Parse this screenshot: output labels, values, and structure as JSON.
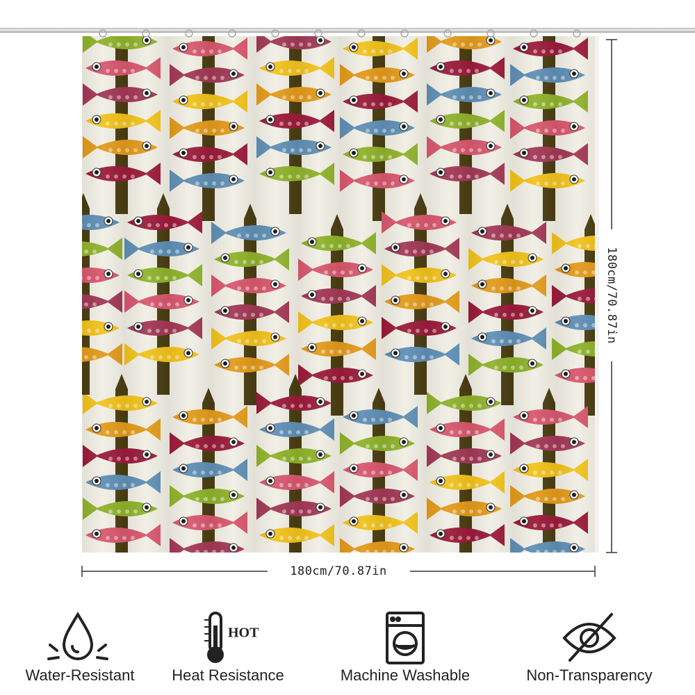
{
  "product": {
    "width_label": "180cm/70.87in",
    "height_label": "180cm/70.87in"
  },
  "features": [
    {
      "label": "Water-Resistant"
    },
    {
      "label": "Heat Resistance",
      "badge": "HOT"
    },
    {
      "label": "Machine Washable"
    },
    {
      "label": "Non-Transparency"
    }
  ]
}
